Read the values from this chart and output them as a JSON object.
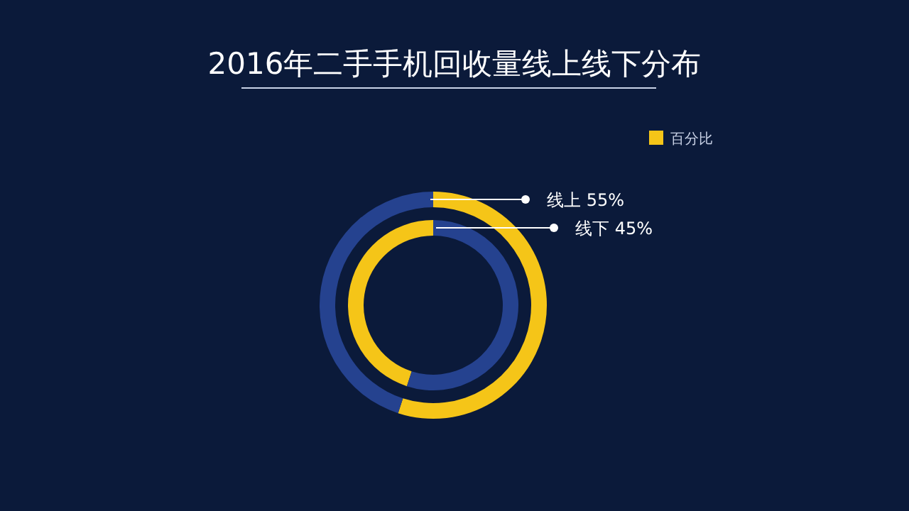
{
  "chart_data": {
    "type": "donut",
    "title": "2016年二手手机回收量线上线下分布",
    "categories": [
      "百分比",
      null
    ],
    "colors": [
      "#f5c518",
      "#25428f"
    ],
    "series": [
      {
        "name": "线上",
        "values": [
          55,
          45
        ],
        "value_labels": [
          "55%",
          null
        ]
      },
      {
        "name": "线下",
        "values": [
          45,
          55
        ],
        "value_labels": [
          "45%",
          null
        ]
      }
    ],
    "legend": "top right"
  }
}
